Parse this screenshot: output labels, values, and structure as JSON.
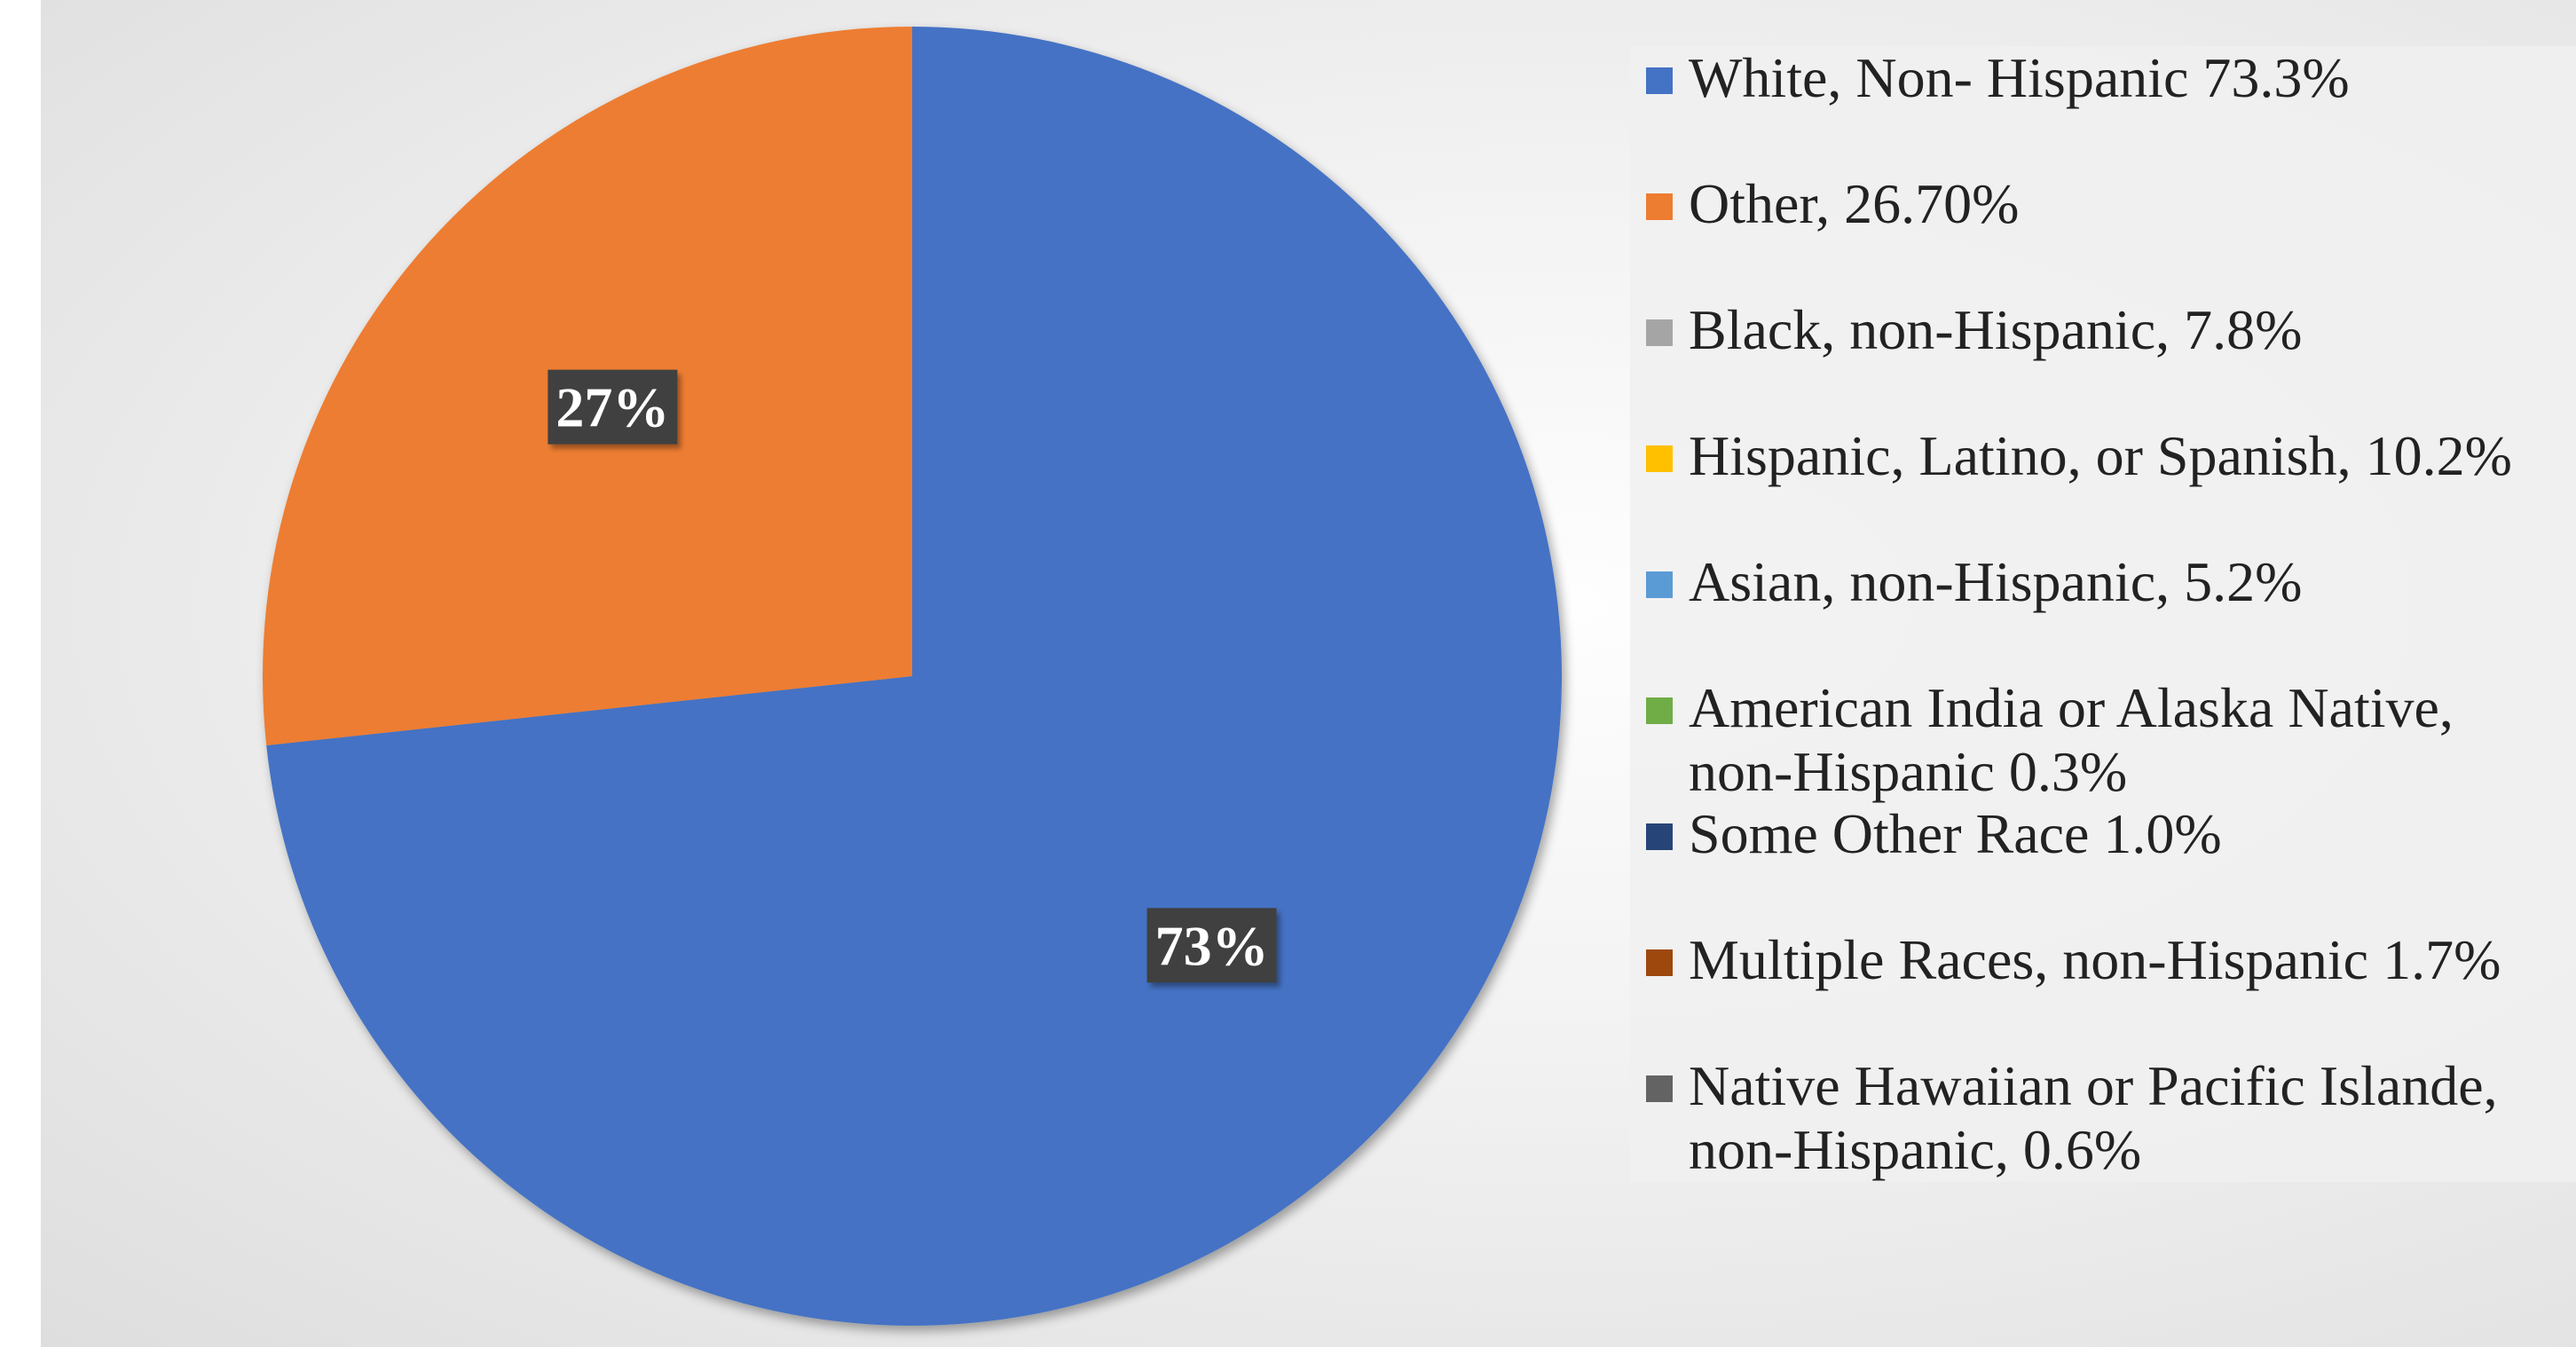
{
  "chart_data": {
    "type": "pie",
    "slices": [
      {
        "name": "White, Non- Hispanic 73.3%",
        "value": 73.3,
        "label": "73%",
        "color": "#4472C4"
      },
      {
        "name": "Other, 26.70%",
        "value": 26.7,
        "label": "27%",
        "color": "#ED7D31"
      },
      {
        "name": "Black, non-Hispanic, 7.8%",
        "value": 0,
        "label": "",
        "color": "#A5A5A5"
      },
      {
        "name": "Hispanic, Latino, or Spanish, 10.2%",
        "value": 0,
        "label": "",
        "color": "#FFC000"
      },
      {
        "name": "Asian, non-Hispanic, 5.2%",
        "value": 0,
        "label": "",
        "color": "#5B9BD5"
      },
      {
        "name": "American India or Alaska Native, non-Hispanic 0.3%",
        "value": 0,
        "label": "",
        "color": "#70AD47"
      },
      {
        "name": "Some Other Race 1.0%",
        "value": 0,
        "label": "",
        "color": "#264478"
      },
      {
        "name": "Multiple Races, non-Hispanic 1.7%",
        "value": 0,
        "label": "",
        "color": "#9E480E"
      },
      {
        "name": "Native Hawaiian or Pacific Islande, non-Hispanic, 0.6%",
        "value": 0,
        "label": "",
        "color": "#636363"
      }
    ],
    "legend_position": "right"
  }
}
